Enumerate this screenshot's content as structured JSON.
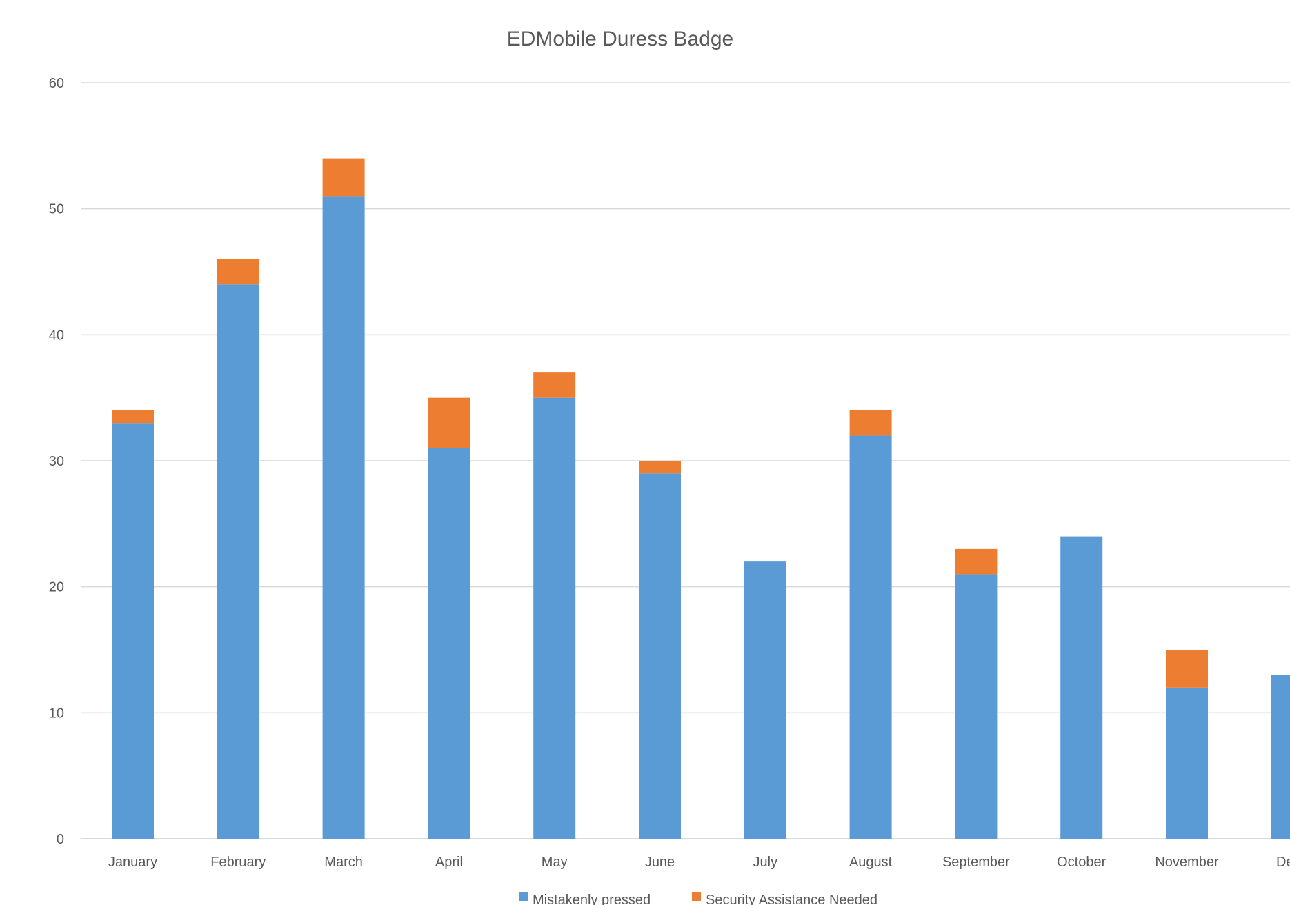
{
  "chart_data": {
    "type": "bar",
    "stacked": true,
    "title": "EDMobile Duress Badge",
    "xlabel": "",
    "ylabel": "",
    "ylim": [
      0,
      60
    ],
    "yticks": [
      0,
      10,
      20,
      30,
      40,
      50,
      60
    ],
    "grid": true,
    "legend": "bottom",
    "categories": [
      "January",
      "February",
      "March",
      "April",
      "May",
      "June",
      "July",
      "August",
      "September",
      "October",
      "November",
      "Dece"
    ],
    "series": [
      {
        "name": "Mistakenly pressed",
        "color": "#5b9bd5",
        "values": [
          33,
          44,
          51,
          31,
          35,
          29,
          22,
          32,
          21,
          24,
          12,
          13
        ]
      },
      {
        "name": "Security Assistance Needed",
        "color": "#ed7d31",
        "values": [
          1,
          2,
          3,
          4,
          2,
          1,
          0,
          2,
          2,
          0,
          3,
          0
        ]
      }
    ]
  }
}
